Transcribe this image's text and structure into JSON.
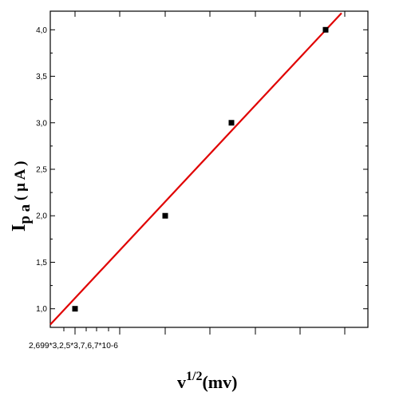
{
  "colors": {
    "axis": "#000000",
    "fit_line": "#e00000",
    "marker": "#000000",
    "background": "#ffffff"
  },
  "chart_data": {
    "type": "scatter",
    "title": "",
    "xlabel": {
      "base": "v",
      "superscript": "1/2",
      "rest": "(mv)"
    },
    "ylabel": {
      "main": "I",
      "subscript": "p a",
      "rest": " ( µ A )"
    },
    "ylim": [
      0.8,
      4.2
    ],
    "y_ticks": [
      1.0,
      1.5,
      2.0,
      2.5,
      3.0,
      3.5,
      4.0
    ],
    "y_tick_labels": [
      "1,0",
      "1,5",
      "2,0",
      "2,5",
      "3,0",
      "3,5",
      "4,0"
    ],
    "x_tick_label_text": "2,699*3,2,5*3,7,6,7*10-6",
    "series": [
      {
        "points": [
          {
            "x": 1,
            "y": 1.0
          },
          {
            "x": 2,
            "y": 2.0
          },
          {
            "x": 3,
            "y": 3.0
          },
          {
            "x": 4,
            "y": 4.0
          }
        ]
      }
    ],
    "fit_line": {
      "y_start": 0.83,
      "y_end": 4.18
    },
    "grid": false,
    "legend": "none"
  }
}
